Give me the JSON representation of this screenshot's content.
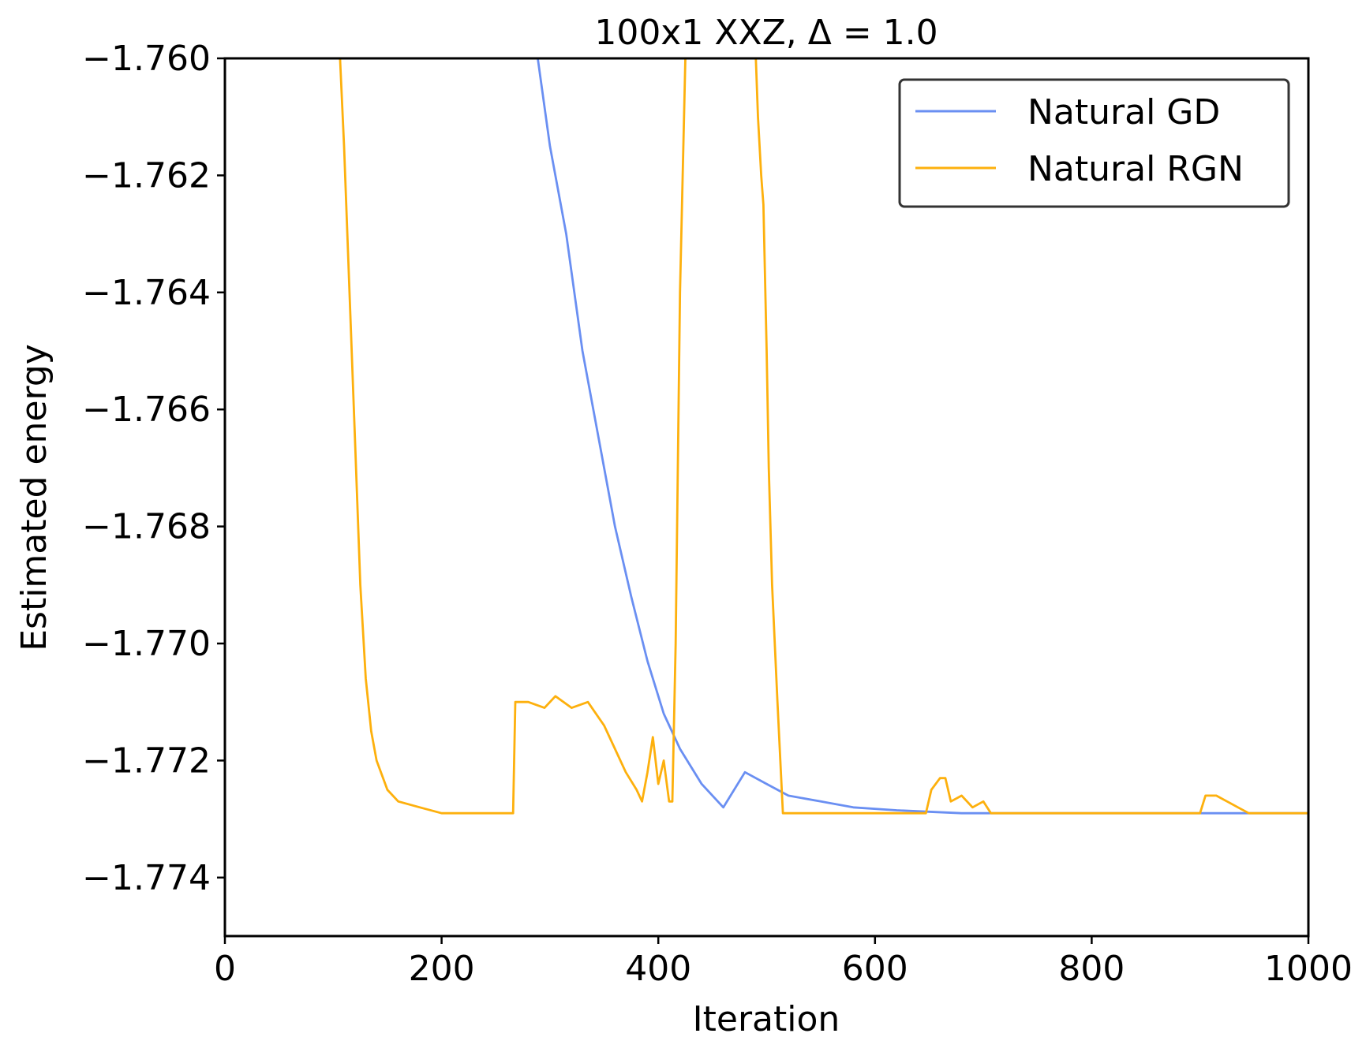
{
  "chart_data": {
    "type": "line",
    "title": "100x1 XXZ, Δ = 1.0",
    "xlabel": "Iteration",
    "ylabel": "Estimated energy",
    "xlim": [
      0,
      1000
    ],
    "ylim": [
      -1.775,
      -1.76
    ],
    "x_ticks": [
      0,
      200,
      400,
      600,
      800,
      1000
    ],
    "x_tick_labels": [
      "0",
      "200",
      "400",
      "600",
      "800",
      "1000"
    ],
    "y_ticks": [
      -1.774,
      -1.772,
      -1.77,
      -1.768,
      -1.766,
      -1.764,
      -1.762,
      -1.76
    ],
    "y_tick_labels": [
      "−1.774",
      "−1.772",
      "−1.770",
      "−1.768",
      "−1.766",
      "−1.764",
      "−1.762",
      "−1.760"
    ],
    "grid": false,
    "legend_position": "top-right",
    "series": [
      {
        "name": "Natural GD",
        "color": "#6a8ff2",
        "points": [
          [
            285,
            -1.7595
          ],
          [
            300,
            -1.7615
          ],
          [
            315,
            -1.763
          ],
          [
            330,
            -1.765
          ],
          [
            345,
            -1.7665
          ],
          [
            360,
            -1.768
          ],
          [
            375,
            -1.7692
          ],
          [
            390,
            -1.7703
          ],
          [
            405,
            -1.7712
          ],
          [
            420,
            -1.7718
          ],
          [
            440,
            -1.7724
          ],
          [
            460,
            -1.7728
          ],
          [
            480,
            -1.7722
          ],
          [
            500,
            -1.7724
          ],
          [
            520,
            -1.7726
          ],
          [
            550,
            -1.7727
          ],
          [
            580,
            -1.7728
          ],
          [
            620,
            -1.77285
          ],
          [
            680,
            -1.7729
          ],
          [
            750,
            -1.7729
          ],
          [
            850,
            -1.7729
          ],
          [
            1000,
            -1.7729
          ]
        ]
      },
      {
        "name": "Natural RGN",
        "color": "#fdb00d",
        "points": [
          [
            105,
            -1.7595
          ],
          [
            110,
            -1.7615
          ],
          [
            115,
            -1.764
          ],
          [
            120,
            -1.7665
          ],
          [
            125,
            -1.769
          ],
          [
            130,
            -1.7706
          ],
          [
            135,
            -1.7715
          ],
          [
            140,
            -1.772
          ],
          [
            150,
            -1.7725
          ],
          [
            160,
            -1.7727
          ],
          [
            180,
            -1.7728
          ],
          [
            200,
            -1.7729
          ],
          [
            240,
            -1.7729
          ],
          [
            266,
            -1.7729
          ],
          [
            268,
            -1.771
          ],
          [
            280,
            -1.771
          ],
          [
            295,
            -1.7711
          ],
          [
            305,
            -1.7709
          ],
          [
            320,
            -1.7711
          ],
          [
            335,
            -1.771
          ],
          [
            350,
            -1.7714
          ],
          [
            360,
            -1.7718
          ],
          [
            370,
            -1.7722
          ],
          [
            380,
            -1.7725
          ],
          [
            385,
            -1.7727
          ],
          [
            390,
            -1.7722
          ],
          [
            395,
            -1.7716
          ],
          [
            400,
            -1.7724
          ],
          [
            405,
            -1.772
          ],
          [
            410,
            -1.7727
          ],
          [
            413,
            -1.7727
          ],
          [
            416,
            -1.77
          ],
          [
            420,
            -1.764
          ],
          [
            425,
            -1.76
          ],
          [
            428,
            -1.7595
          ],
          [
            488,
            -1.7595
          ],
          [
            490,
            -1.76
          ],
          [
            492,
            -1.761
          ],
          [
            495,
            -1.762
          ],
          [
            497,
            -1.7625
          ],
          [
            500,
            -1.765
          ],
          [
            502,
            -1.767
          ],
          [
            505,
            -1.769
          ],
          [
            510,
            -1.771
          ],
          [
            515,
            -1.7729
          ],
          [
            520,
            -1.7729
          ],
          [
            600,
            -1.7729
          ],
          [
            647,
            -1.7729
          ],
          [
            652,
            -1.7725
          ],
          [
            660,
            -1.7723
          ],
          [
            665,
            -1.7723
          ],
          [
            670,
            -1.7727
          ],
          [
            680,
            -1.7726
          ],
          [
            690,
            -1.7728
          ],
          [
            700,
            -1.7727
          ],
          [
            707,
            -1.7729
          ],
          [
            710,
            -1.7729
          ],
          [
            800,
            -1.7729
          ],
          [
            900,
            -1.7729
          ],
          [
            905,
            -1.7726
          ],
          [
            915,
            -1.7726
          ],
          [
            925,
            -1.7727
          ],
          [
            935,
            -1.7728
          ],
          [
            945,
            -1.7729
          ],
          [
            960,
            -1.7729
          ],
          [
            1000,
            -1.7729
          ]
        ]
      }
    ]
  }
}
